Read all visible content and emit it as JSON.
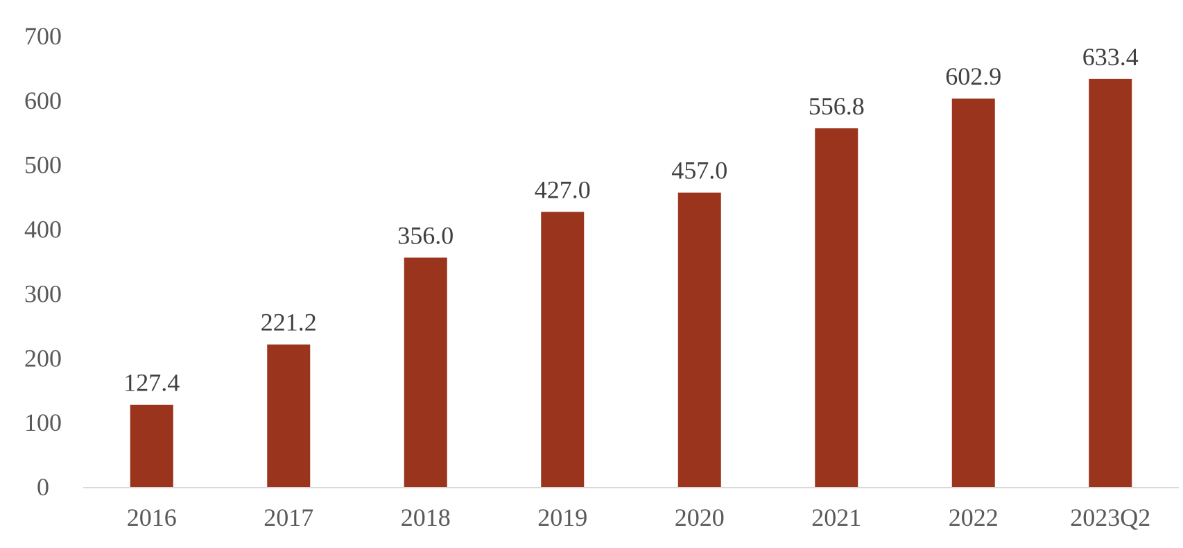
{
  "chart_data": {
    "type": "bar",
    "title": "",
    "xlabel": "",
    "ylabel": "",
    "categories": [
      "2016",
      "2017",
      "2018",
      "2019",
      "2020",
      "2021",
      "2022",
      "2023Q2"
    ],
    "values": [
      127.4,
      221.2,
      356.0,
      427.0,
      457.0,
      556.8,
      602.9,
      633.4
    ],
    "data_labels": [
      "127.4",
      "221.2",
      "356.0",
      "427.0",
      "457.0",
      "556.8",
      "602.9",
      "633.4"
    ],
    "ylim": [
      0,
      700
    ],
    "yticks": [
      "0",
      "100",
      "200",
      "300",
      "400",
      "500",
      "600",
      "700"
    ],
    "grid": false,
    "legend": "none",
    "colors": {
      "bar": "#9A341C",
      "axis_line": "#D9D9D9",
      "tick_text": "#595959",
      "label_text": "#404040"
    }
  }
}
